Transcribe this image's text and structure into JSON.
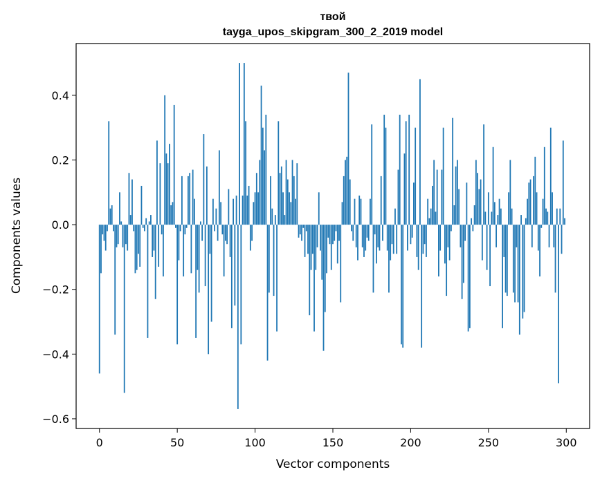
{
  "chart_data": {
    "type": "bar",
    "title_line1": "твой",
    "title_line2": "tayga_upos_skipgram_300_2_2019 model",
    "xlabel": "Vector components",
    "ylabel": "Components values",
    "xlim": [
      -15,
      315
    ],
    "ylim": [
      -0.63,
      0.56
    ],
    "xticks": [
      0,
      50,
      100,
      150,
      200,
      250,
      300
    ],
    "xtick_labels": [
      "0",
      "50",
      "100",
      "150",
      "200",
      "250",
      "300"
    ],
    "yticks": [
      -0.6,
      -0.4,
      -0.2,
      0.0,
      0.2,
      0.4
    ],
    "ytick_labels": [
      "−0.6",
      "−0.4",
      "−0.2",
      "0.0",
      "0.2",
      "0.4"
    ],
    "bar_color": "#1f77b4",
    "x_start": 0,
    "values": [
      -0.46,
      -0.15,
      -0.03,
      -0.05,
      -0.08,
      -0.02,
      0.32,
      0.05,
      0.06,
      -0.02,
      -0.34,
      -0.07,
      -0.06,
      0.1,
      0.01,
      -0.07,
      -0.52,
      -0.06,
      -0.08,
      0.16,
      0.03,
      0.14,
      -0.02,
      -0.15,
      -0.14,
      -0.09,
      -0.13,
      0.12,
      -0.01,
      -0.02,
      0.02,
      -0.35,
      0.01,
      0.03,
      -0.1,
      -0.08,
      -0.23,
      0.26,
      -0.13,
      0.19,
      -0.03,
      -0.16,
      0.4,
      0.22,
      0.19,
      0.25,
      0.06,
      0.07,
      0.37,
      -0.01,
      -0.37,
      -0.11,
      -0.02,
      0.15,
      -0.16,
      -0.03,
      -0.01,
      0.15,
      0.16,
      -0.15,
      0.17,
      0.08,
      -0.35,
      -0.14,
      -0.21,
      0.01,
      -0.05,
      0.28,
      -0.19,
      0.18,
      -0.4,
      -0.09,
      -0.3,
      0.08,
      -0.02,
      0.05,
      -0.05,
      0.23,
      0.07,
      -0.03,
      -0.16,
      -0.05,
      -0.06,
      0.11,
      -0.1,
      -0.32,
      0.08,
      -0.25,
      0.09,
      -0.57,
      0.5,
      -0.37,
      0.09,
      0.5,
      0.32,
      0.09,
      0.12,
      -0.08,
      -0.05,
      0.07,
      0.1,
      0.16,
      0.1,
      0.2,
      0.43,
      0.3,
      0.23,
      0.34,
      -0.42,
      -0.21,
      0.15,
      0.05,
      -0.22,
      0.03,
      -0.33,
      0.32,
      0.16,
      0.18,
      0.1,
      0.03,
      0.2,
      0.14,
      0.1,
      0.07,
      0.2,
      0.15,
      0.08,
      0.19,
      -0.04,
      -0.03,
      -0.05,
      -0.01,
      -0.1,
      -0.02,
      -0.09,
      -0.28,
      -0.14,
      -0.09,
      -0.33,
      -0.14,
      -0.07,
      0.1,
      -0.08,
      -0.17,
      -0.39,
      -0.27,
      -0.15,
      -0.04,
      -0.06,
      -0.14,
      -0.06,
      -0.05,
      -0.02,
      -0.12,
      -0.05,
      -0.24,
      0.07,
      0.15,
      0.2,
      0.21,
      0.47,
      0.14,
      -0.02,
      -0.05,
      0.08,
      -0.07,
      -0.11,
      0.09,
      0.08,
      -0.07,
      -0.1,
      -0.08,
      -0.04,
      -0.05,
      0.08,
      0.31,
      -0.21,
      -0.03,
      -0.12,
      -0.07,
      -0.08,
      0.15,
      -0.05,
      0.34,
      0.3,
      -0.08,
      -0.21,
      -0.11,
      -0.06,
      -0.09,
      0.05,
      -0.09,
      0.17,
      0.34,
      -0.37,
      -0.38,
      0.22,
      0.32,
      -0.08,
      0.34,
      -0.06,
      -0.04,
      0.13,
      0.3,
      -0.1,
      -0.14,
      0.45,
      -0.38,
      -0.09,
      -0.06,
      -0.1,
      0.08,
      0.02,
      0.05,
      0.12,
      0.2,
      0.04,
      0.17,
      -0.16,
      -0.08,
      0.17,
      0.3,
      -0.12,
      -0.22,
      -0.07,
      -0.11,
      -0.02,
      0.33,
      0.06,
      0.18,
      0.2,
      0.11,
      -0.07,
      -0.23,
      -0.18,
      -0.05,
      0.13,
      -0.33,
      -0.32,
      0.02,
      -0.02,
      0.06,
      0.2,
      0.16,
      0.11,
      0.14,
      -0.11,
      0.31,
      0.04,
      -0.14,
      0.1,
      -0.19,
      0.04,
      0.24,
      0.07,
      -0.07,
      0.03,
      0.08,
      0.05,
      -0.32,
      -0.1,
      -0.21,
      -0.22,
      0.1,
      0.2,
      0.05,
      -0.21,
      -0.24,
      -0.07,
      -0.24,
      -0.34,
      0.03,
      -0.29,
      -0.27,
      0.02,
      0.08,
      0.13,
      0.14,
      -0.07,
      0.15,
      0.21,
      0.1,
      -0.08,
      -0.16,
      -0.01,
      0.08,
      0.24,
      0.05,
      0.04,
      -0.07,
      0.3,
      0.1,
      -0.07,
      -0.21,
      0.05,
      -0.49,
      0.05,
      -0.09,
      0.26,
      0.02
    ]
  }
}
